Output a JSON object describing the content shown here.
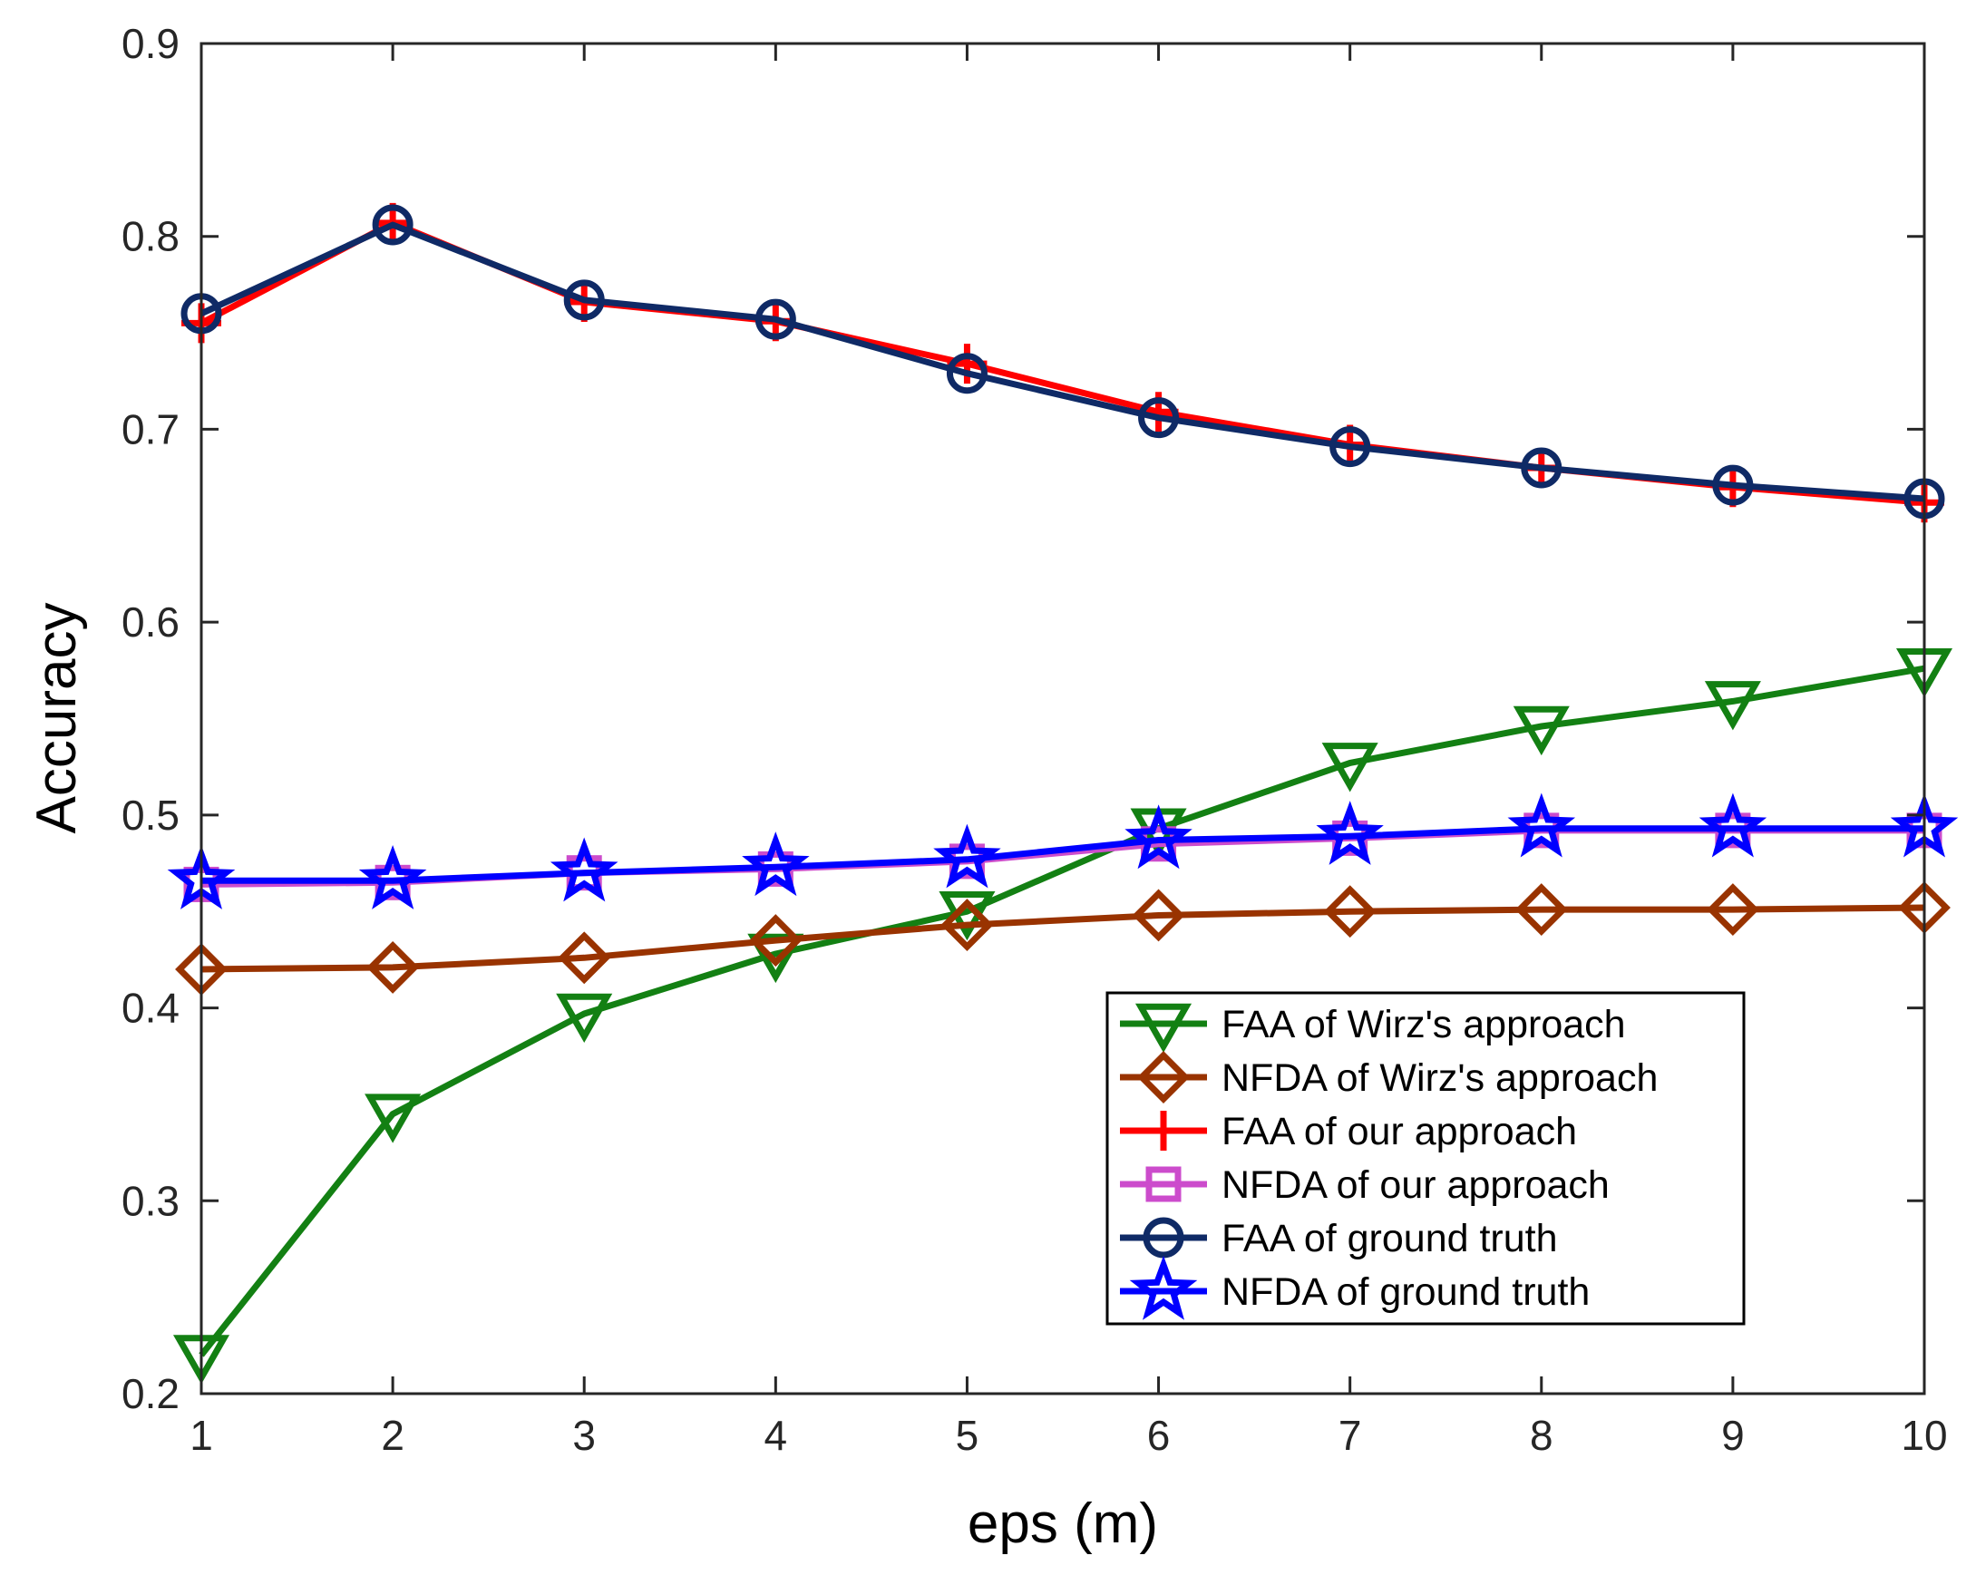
{
  "chart_data": {
    "type": "line",
    "title": "",
    "xlabel": "eps (m)",
    "ylabel": "Accuracy",
    "xlim": [
      1,
      10
    ],
    "ylim": [
      0.2,
      0.9
    ],
    "x": [
      1,
      2,
      3,
      4,
      5,
      6,
      7,
      8,
      9,
      10
    ],
    "xticks": [
      "1",
      "2",
      "3",
      "4",
      "5",
      "6",
      "7",
      "8",
      "9",
      "10"
    ],
    "yticks": [
      {
        "value": 0.2,
        "label": "0.2"
      },
      {
        "value": 0.3,
        "label": "0.3"
      },
      {
        "value": 0.4,
        "label": "0.4"
      },
      {
        "value": 0.5,
        "label": "0.5"
      },
      {
        "value": 0.6,
        "label": "0.6"
      },
      {
        "value": 0.7,
        "label": "0.7"
      },
      {
        "value": 0.8,
        "label": "0.8"
      },
      {
        "value": 0.9,
        "label": "0.9"
      }
    ],
    "grid": false,
    "legend_position": "bottom-right",
    "series": [
      {
        "name": "FAA of Wirz's approach",
        "color": "#138013",
        "marker": "triangle-down",
        "values": [
          0.22,
          0.345,
          0.397,
          0.428,
          0.45,
          0.493,
          0.527,
          0.546,
          0.559,
          0.576
        ]
      },
      {
        "name": "NFDA of Wirz's approach",
        "color": "#993300",
        "marker": "diamond",
        "values": [
          0.42,
          0.421,
          0.426,
          0.435,
          0.443,
          0.448,
          0.45,
          0.451,
          0.451,
          0.452
        ]
      },
      {
        "name": "FAA of our approach",
        "color": "#ff0000",
        "marker": "plus",
        "values": [
          0.755,
          0.807,
          0.766,
          0.756,
          0.734,
          0.709,
          0.692,
          0.68,
          0.67,
          0.662
        ]
      },
      {
        "name": "NFDA of our approach",
        "color": "#cc4ccc",
        "marker": "square",
        "values": [
          0.464,
          0.465,
          0.47,
          0.472,
          0.476,
          0.485,
          0.488,
          0.492,
          0.492,
          0.492
        ]
      },
      {
        "name": "FAA of ground truth",
        "color": "#0f2a66",
        "marker": "circle",
        "values": [
          0.76,
          0.806,
          0.767,
          0.757,
          0.729,
          0.706,
          0.691,
          0.68,
          0.671,
          0.664
        ]
      },
      {
        "name": "NFDA of ground truth",
        "color": "#0000ff",
        "marker": "star",
        "values": [
          0.466,
          0.466,
          0.47,
          0.473,
          0.477,
          0.487,
          0.489,
          0.493,
          0.493,
          0.493
        ]
      }
    ]
  }
}
